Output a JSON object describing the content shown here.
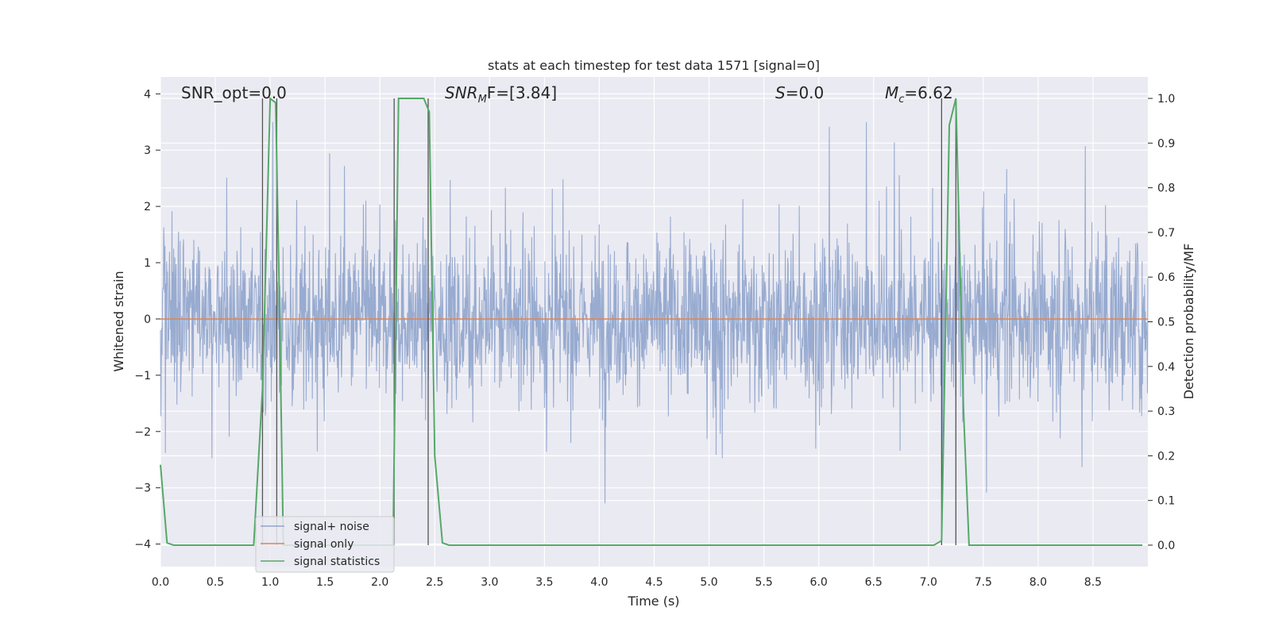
{
  "chart_data": {
    "type": "line",
    "title": "stats at each timestep for test data 1571 [signal=0]",
    "xlabel": "Time (s)",
    "ylabel": "Whitened strain",
    "ylabel_right": "Detection probability/MF",
    "xlim": [
      0,
      9.0
    ],
    "ylim": [
      -4.4,
      4.3
    ],
    "ylim_right": [
      -0.048,
      1.048
    ],
    "x_ticks": [
      "0.0",
      "0.5",
      "1.0",
      "1.5",
      "2.0",
      "2.5",
      "3.0",
      "3.5",
      "4.0",
      "4.5",
      "5.0",
      "5.5",
      "6.0",
      "6.5",
      "7.0",
      "7.5",
      "8.0",
      "8.5"
    ],
    "y_ticks": [
      "−4",
      "−3",
      "−2",
      "−1",
      "0",
      "1",
      "2",
      "3",
      "4"
    ],
    "y_right_ticks": [
      "0.0",
      "0.1",
      "0.2",
      "0.3",
      "0.4",
      "0.5",
      "0.6",
      "0.7",
      "0.8",
      "0.9",
      "1.0"
    ],
    "grid": true,
    "legend_position": "lower-left",
    "annotations": {
      "snr_opt": "SNR_opt=0.0",
      "snr_mf_math": "SNR",
      "snr_mf_sub": "M",
      "snr_mf_rest": "F=[3.84]",
      "s_math": "S",
      "s_rest": "=0.0",
      "mc_math": "M",
      "mc_sub": "c",
      "mc_rest": "=6.62"
    },
    "series": [
      {
        "name": "signal+ noise",
        "color": "#8fa4cc",
        "description_values": "whitened noise, amplitude ~±1.6 with spikes to ±3.5",
        "noise_envelope": {
          "typical_abs": 1.6,
          "peak_abs": 3.5,
          "duration_s": 9.0
        }
      },
      {
        "name": "signal only",
        "color": "#dd8452",
        "x": [
          0,
          9.0
        ],
        "y": [
          0,
          0
        ]
      },
      {
        "name": "signal statistics",
        "color": "#55a868",
        "axis": "right",
        "x": [
          0.0,
          0.06,
          0.12,
          0.5,
          0.85,
          0.93,
          1.0,
          1.05,
          1.08,
          1.12,
          1.3,
          2.0,
          2.12,
          2.17,
          2.4,
          2.45,
          2.5,
          2.57,
          2.63,
          3.5,
          5.0,
          7.05,
          7.12,
          7.19,
          7.25,
          7.32,
          7.37,
          8.0,
          8.95
        ],
        "y": [
          0.18,
          0.005,
          0.0,
          0.0,
          0.0,
          0.35,
          1.0,
          0.99,
          0.6,
          0.0,
          0.0,
          0.0,
          0.0,
          1.0,
          1.0,
          0.97,
          0.2,
          0.005,
          0.0,
          0.0,
          0.0,
          0.0,
          0.01,
          0.94,
          1.0,
          0.3,
          0.0,
          0.0,
          0.0
        ]
      }
    ],
    "vertical_markers": [
      0.93,
      1.06,
      2.13,
      2.44,
      7.12,
      7.25
    ]
  }
}
